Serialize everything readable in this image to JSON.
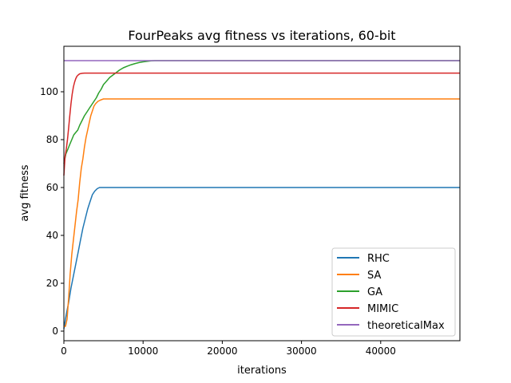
{
  "chart_data": {
    "type": "line",
    "title": "FourPeaks avg fitness vs iterations, 60-bit",
    "xlabel": "iterations",
    "ylabel": "avg fitness",
    "xlim": [
      0,
      50000
    ],
    "ylim": [
      -4,
      119
    ],
    "xticks": [
      0,
      10000,
      20000,
      30000,
      40000
    ],
    "yticks": [
      0,
      20,
      40,
      60,
      80,
      100
    ],
    "grid": false,
    "legend_position": "lower-right",
    "series": [
      {
        "name": "RHC",
        "color": "#1f77b4",
        "x": [
          0,
          300,
          600,
          900,
          1200,
          1500,
          1800,
          2100,
          2400,
          2700,
          3000,
          3300,
          3600,
          3900,
          4200,
          4500,
          5000,
          7000,
          10000,
          20000,
          30000,
          40000,
          50000
        ],
        "y": [
          1,
          7,
          12,
          18,
          23,
          28,
          33,
          38,
          43,
          47,
          51,
          54,
          57,
          58.5,
          59.5,
          60,
          60,
          60,
          60,
          60,
          60,
          60,
          60
        ]
      },
      {
        "name": "SA",
        "color": "#ff7f0e",
        "x": [
          0,
          200,
          400,
          600,
          800,
          1000,
          1200,
          1400,
          1600,
          1800,
          2000,
          2200,
          2400,
          2600,
          2800,
          3000,
          3200,
          3400,
          3600,
          3800,
          4000,
          4300,
          4600,
          5000,
          6000,
          8000,
          10000,
          20000,
          30000,
          40000,
          50000
        ],
        "y": [
          2,
          2,
          5,
          14,
          24,
          32,
          38,
          44,
          50,
          55,
          62,
          68,
          72,
          77,
          81,
          84,
          87,
          90,
          92,
          94,
          95,
          96,
          96.5,
          97,
          97,
          97,
          97,
          97,
          97,
          97,
          97
        ]
      },
      {
        "name": "GA",
        "color": "#2ca02c",
        "x": [
          0,
          250,
          500,
          750,
          1000,
          1250,
          1500,
          1750,
          2000,
          2300,
          2600,
          2900,
          3200,
          3500,
          3800,
          4100,
          4400,
          4700,
          5000,
          5400,
          5800,
          6200,
          6600,
          7000,
          7500,
          8000,
          8500,
          9000,
          9500,
          10000,
          10500,
          11000,
          11500,
          12000,
          13000,
          14000,
          16000,
          20000,
          30000,
          40000,
          50000
        ],
        "y": [
          70,
          74,
          76,
          78,
          80,
          82,
          83,
          84,
          86,
          88,
          90,
          91.5,
          93,
          94.5,
          96,
          97.5,
          99.5,
          101,
          103,
          104.5,
          106,
          107,
          108,
          109,
          110,
          110.7,
          111.3,
          111.8,
          112.2,
          112.5,
          112.7,
          112.9,
          113,
          113,
          113,
          113,
          113,
          113,
          113,
          113,
          113
        ]
      },
      {
        "name": "MIMIC",
        "color": "#d62728",
        "x": [
          0,
          150,
          300,
          450,
          600,
          750,
          900,
          1050,
          1200,
          1350,
          1500,
          1650,
          1800,
          2000,
          2300,
          2600,
          3000,
          4000,
          6000,
          10000,
          20000,
          30000,
          40000,
          50000
        ],
        "y": [
          65,
          73,
          76,
          80,
          85,
          90,
          95,
          99,
          102,
          104,
          105.5,
          106.5,
          107,
          107.5,
          107.7,
          107.8,
          107.8,
          107.8,
          107.8,
          107.8,
          107.8,
          107.8,
          107.8,
          107.8
        ]
      },
      {
        "name": "theoreticalMax",
        "color": "#9467bd",
        "x": [
          0,
          50000
        ],
        "y": [
          113,
          113
        ]
      }
    ]
  }
}
